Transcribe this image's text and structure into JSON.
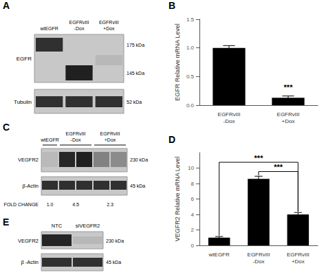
{
  "chart_data": [
    {
      "type": "blot",
      "title": "A",
      "categories": [
        "wtEGFR",
        "EGFRvIII\n-Dox",
        "EGFRvIII\n+Dox"
      ],
      "annotations": [
        "EGFR",
        "Tubulin",
        "175 kDa",
        "145 kDa",
        "52 kDa"
      ]
    },
    {
      "type": "bar",
      "title": "B",
      "categories": [
        "EGFRvIII\n-Dox",
        "EGFRvIII\n+Dox"
      ],
      "values": [
        1.0,
        0.13
      ],
      "errors": [
        0.04,
        0.03
      ],
      "ylabel": "EGFR Relative mRNA Level",
      "ylim": [
        0,
        1.5
      ],
      "yticks": [
        {
          "value": 0,
          "label": "0.0"
        },
        0.5,
        {
          "value": 1,
          "label": "1.0"
        },
        1.5
      ],
      "color": "#000000",
      "grid": false,
      "annotations": [
        "***"
      ]
    },
    {
      "type": "blot",
      "title": "C",
      "categories": [
        "wtEGFR",
        "EGFRvIII\n-Dox",
        "EGFRvIII\n+Dox"
      ],
      "annotations": [
        "VEGFR2",
        "β-Actin",
        "230 kDa",
        "45 kDa",
        "FOLD CHANGE",
        "1.0",
        "4.5",
        "2.3"
      ]
    },
    {
      "type": "bar",
      "title": "D",
      "categories": [
        "wtEGFR",
        "EGFRvIII\n-Dox",
        "EGFRvIII\n+Dox"
      ],
      "values": [
        1.0,
        8.6,
        4.0
      ],
      "errors": [
        0.15,
        0.35,
        0.25
      ],
      "ylabel": "VEGFR2 Relative mRNA Level",
      "ylim": [
        0,
        12
      ],
      "yticks": [
        0,
        2,
        4,
        6,
        8,
        10
      ],
      "color": "#000000",
      "grid": false,
      "annotations": [
        "***",
        "***"
      ]
    },
    {
      "type": "blot",
      "title": "E",
      "categories": [
        "NTC",
        "siVEGFR2"
      ],
      "annotations": [
        "VEGFR2",
        "β -Actin",
        "230 kDa",
        "45 kDa"
      ]
    }
  ]
}
